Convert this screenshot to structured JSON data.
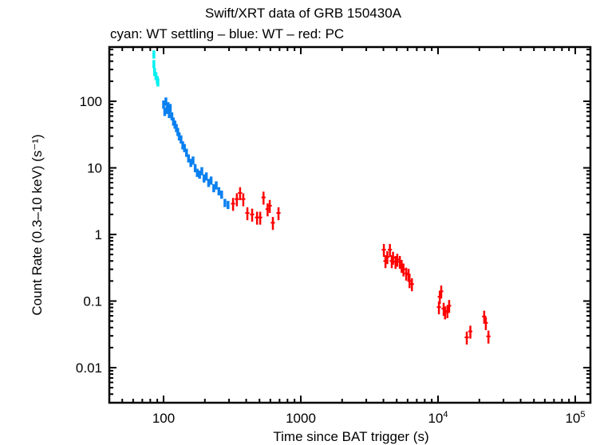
{
  "chart_data": {
    "type": "scatter",
    "title": "Swift/XRT data of GRB 150430A",
    "subtitle": "cyan: WT settling – blue: WT – red: PC",
    "xlabel": "Time since BAT trigger (s)",
    "ylabel": "Count Rate (0.3–10 keV) (s⁻¹)",
    "xscale": "log",
    "yscale": "log",
    "xlim": [
      41,
      129000
    ],
    "ylim": [
      0.003,
      670
    ],
    "grid": false,
    "x_ticks": [
      {
        "value": 100,
        "label": "100"
      },
      {
        "value": 1000,
        "label": "1000"
      },
      {
        "value": 10000,
        "label": "10",
        "exp": "4"
      },
      {
        "value": 100000,
        "label": "10",
        "exp": "5"
      }
    ],
    "y_ticks": [
      {
        "value": 100,
        "label": "100"
      },
      {
        "value": 10,
        "label": "10"
      },
      {
        "value": 1,
        "label": "1"
      },
      {
        "value": 0.1,
        "label": "0.1"
      },
      {
        "value": 0.01,
        "label": "0.01"
      }
    ],
    "series": [
      {
        "mode": "WT settling",
        "color": "#00f0f0",
        "points": [
          [
            85,
            509
          ],
          [
            85,
            365
          ],
          [
            86,
            277
          ],
          [
            88,
            241
          ],
          [
            90,
            210
          ],
          [
            91,
            194
          ]
        ]
      },
      {
        "mode": "WT",
        "color": "#0a80f0",
        "points": [
          [
            100,
            90
          ],
          [
            102,
            70
          ],
          [
            104,
            100
          ],
          [
            106,
            75
          ],
          [
            108,
            85
          ],
          [
            110,
            65
          ],
          [
            112,
            80
          ],
          [
            115,
            60
          ],
          [
            118,
            50
          ],
          [
            121,
            45
          ],
          [
            124,
            40
          ],
          [
            127,
            35
          ],
          [
            130,
            30
          ],
          [
            134,
            27
          ],
          [
            138,
            22
          ],
          [
            142,
            20
          ],
          [
            147,
            17
          ],
          [
            152,
            14
          ],
          [
            158,
            12
          ],
          [
            164,
            13
          ],
          [
            170,
            10
          ],
          [
            176,
            8.5
          ],
          [
            183,
            8
          ],
          [
            190,
            9
          ],
          [
            197,
            7
          ],
          [
            205,
            7.5
          ],
          [
            213,
            6
          ],
          [
            222,
            6.5
          ],
          [
            232,
            5
          ],
          [
            242,
            5.5
          ],
          [
            253,
            4.5
          ],
          [
            265,
            4
          ],
          [
            280,
            3
          ],
          [
            295,
            2.8
          ]
        ]
      },
      {
        "mode": "PC",
        "color": "#ff0000",
        "points": [
          [
            321,
            2.9
          ],
          [
            342,
            3.4
          ],
          [
            361,
            4.2
          ],
          [
            381,
            3.4
          ],
          [
            408,
            2.1
          ],
          [
            442,
            2.0
          ],
          [
            480,
            1.8
          ],
          [
            506,
            1.8
          ],
          [
            535,
            3.6
          ],
          [
            573,
            2.4
          ],
          [
            594,
            2.7
          ],
          [
            626,
            1.5
          ],
          [
            688,
            2.1
          ],
          [
            4030,
            0.59
          ],
          [
            4140,
            0.4
          ],
          [
            4270,
            0.46
          ],
          [
            4460,
            0.59
          ],
          [
            4600,
            0.4
          ],
          [
            4700,
            0.45
          ],
          [
            4900,
            0.39
          ],
          [
            5050,
            0.42
          ],
          [
            5270,
            0.39
          ],
          [
            5430,
            0.34
          ],
          [
            5600,
            0.3
          ],
          [
            5860,
            0.26
          ],
          [
            6100,
            0.25
          ],
          [
            6200,
            0.2
          ],
          [
            6450,
            0.18
          ],
          [
            10150,
            0.081
          ],
          [
            10300,
            0.116
          ],
          [
            10550,
            0.14
          ],
          [
            10990,
            0.077
          ],
          [
            11250,
            0.068
          ],
          [
            11700,
            0.071
          ],
          [
            12050,
            0.085
          ],
          [
            16200,
            0.0285
          ],
          [
            17200,
            0.035
          ],
          [
            21700,
            0.0587
          ],
          [
            22300,
            0.047
          ],
          [
            23300,
            0.0295
          ]
        ]
      }
    ]
  }
}
